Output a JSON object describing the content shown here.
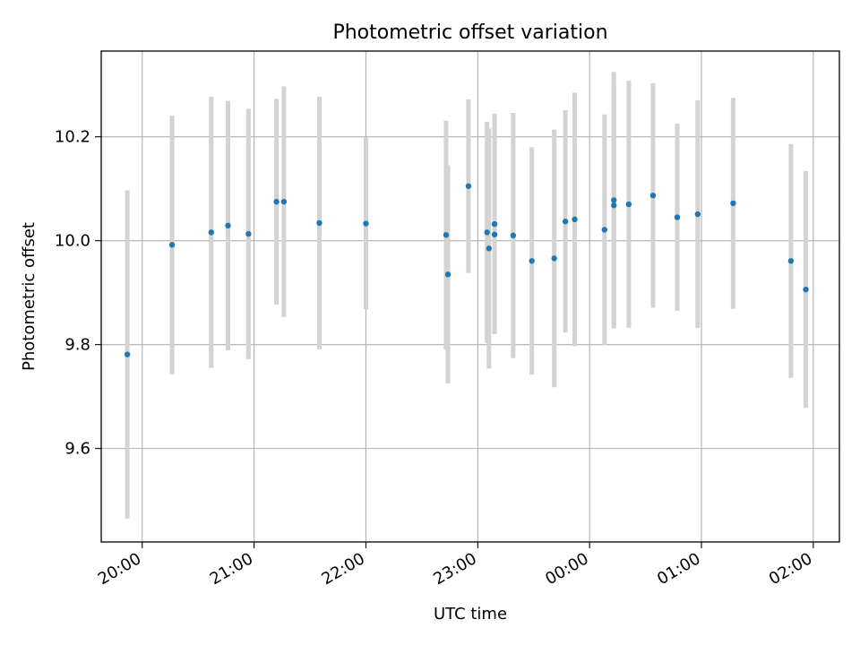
{
  "chart_data": {
    "type": "scatter",
    "title": "Photometric offset variation",
    "xlabel": "UTC time",
    "ylabel": "Photometric offset",
    "x_unit": "UTC time",
    "xlim": [
      "19:38",
      "02:14"
    ],
    "ylim": [
      9.42,
      10.365
    ],
    "x_ticks": [
      "20:00",
      "21:00",
      "22:00",
      "23:00",
      "00:00",
      "01:00",
      "02:00"
    ],
    "y_ticks": [
      "9.6",
      "9.8",
      "10.0",
      "10.2"
    ],
    "grid": true,
    "marker_color": "#1f77b4",
    "errorbar_color": "#d3d3d3",
    "points": [
      {
        "t": "19:52",
        "y": 9.781,
        "err": 0.316
      },
      {
        "t": "20:16",
        "y": 9.992,
        "err": 0.249
      },
      {
        "t": "20:37",
        "y": 10.016,
        "err": 0.261
      },
      {
        "t": "20:46",
        "y": 10.029,
        "err": 0.24
      },
      {
        "t": "20:57",
        "y": 10.013,
        "err": 0.241
      },
      {
        "t": "21:12",
        "y": 10.075,
        "err": 0.198
      },
      {
        "t": "21:16",
        "y": 10.075,
        "err": 0.222
      },
      {
        "t": "21:35",
        "y": 10.034,
        "err": 0.243
      },
      {
        "t": "22:00",
        "y": 10.033,
        "err": 0.165
      },
      {
        "t": "22:43",
        "y": 10.011,
        "err": 0.22
      },
      {
        "t": "22:44",
        "y": 9.935,
        "err": 0.21
      },
      {
        "t": "22:55",
        "y": 10.105,
        "err": 0.167
      },
      {
        "t": "23:05",
        "y": 10.016,
        "err": 0.213
      },
      {
        "t": "23:06",
        "y": 9.985,
        "err": 0.231
      },
      {
        "t": "23:09",
        "y": 10.012,
        "err": 0.191
      },
      {
        "t": "23:09",
        "y": 10.032,
        "err": 0.212
      },
      {
        "t": "23:19",
        "y": 10.01,
        "err": 0.236
      },
      {
        "t": "23:29",
        "y": 9.961,
        "err": 0.219
      },
      {
        "t": "23:41",
        "y": 9.966,
        "err": 0.248
      },
      {
        "t": "23:47",
        "y": 10.037,
        "err": 0.214
      },
      {
        "t": "23:52",
        "y": 10.041,
        "err": 0.244
      },
      {
        "t": "00:08",
        "y": 10.021,
        "err": 0.222
      },
      {
        "t": "00:13",
        "y": 10.068,
        "err": 0.231
      },
      {
        "t": "00:13",
        "y": 10.078,
        "err": 0.247
      },
      {
        "t": "00:21",
        "y": 10.07,
        "err": 0.238
      },
      {
        "t": "00:34",
        "y": 10.087,
        "err": 0.216
      },
      {
        "t": "00:47",
        "y": 10.045,
        "err": 0.18
      },
      {
        "t": "00:58",
        "y": 10.051,
        "err": 0.219
      },
      {
        "t": "01:17",
        "y": 10.072,
        "err": 0.203
      },
      {
        "t": "01:48",
        "y": 9.961,
        "err": 0.225
      },
      {
        "t": "01:56",
        "y": 9.906,
        "err": 0.228
      }
    ]
  }
}
